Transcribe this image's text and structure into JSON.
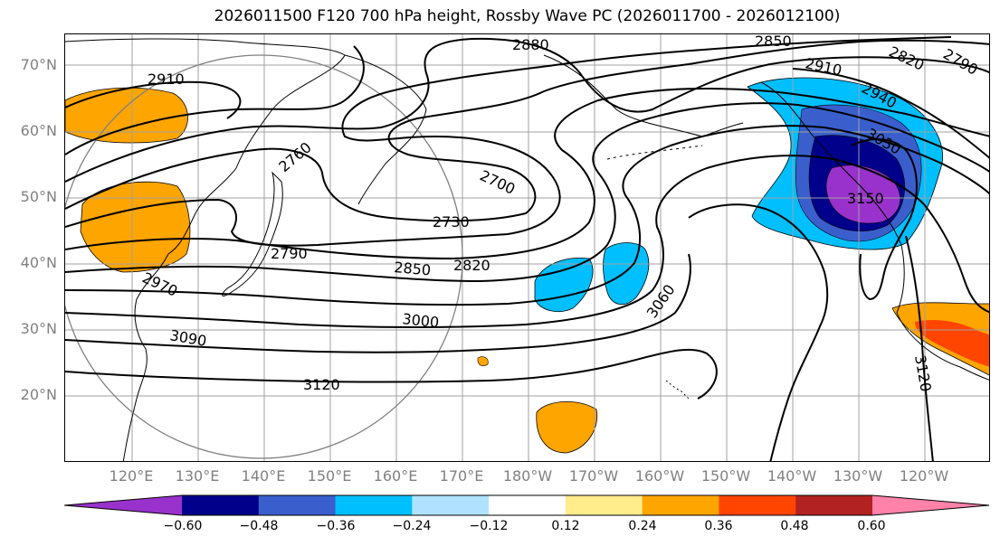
{
  "title": "2026011500 F120 700 hPa height, Rossby Wave PC (2026011700 - 2026012100)",
  "lat_labels": [
    "70°N",
    "60°N",
    "50°N",
    "40°N",
    "30°N",
    "20°N"
  ],
  "lon_labels": [
    "120°E",
    "130°E",
    "140°E",
    "150°E",
    "160°E",
    "170°E",
    "180°W",
    "170°W",
    "160°W",
    "150°W",
    "140°W",
    "130°W",
    "120°W"
  ],
  "contour_labels": [
    "2880",
    "2850",
    "2820",
    "2790",
    "2910",
    "2910",
    "2940",
    "3030",
    "3150",
    "2760",
    "2700",
    "2730",
    "2790",
    "2850",
    "2820",
    "2970",
    "3000",
    "3060",
    "3090",
    "3120",
    "3120"
  ],
  "colorbar": {
    "colors": [
      "#9932cc",
      "#00008b",
      "#3a5fcd",
      "#00bfff",
      "#b0e2ff",
      "#ffffff",
      "#ffec8b",
      "#ffa500",
      "#ff4500",
      "#b22222",
      "#ff82ab"
    ],
    "ticks": [
      "−0.60",
      "−0.48",
      "−0.36",
      "−0.24",
      "−0.12",
      "0.12",
      "0.24",
      "0.36",
      "0.48",
      "0.60"
    ]
  }
}
